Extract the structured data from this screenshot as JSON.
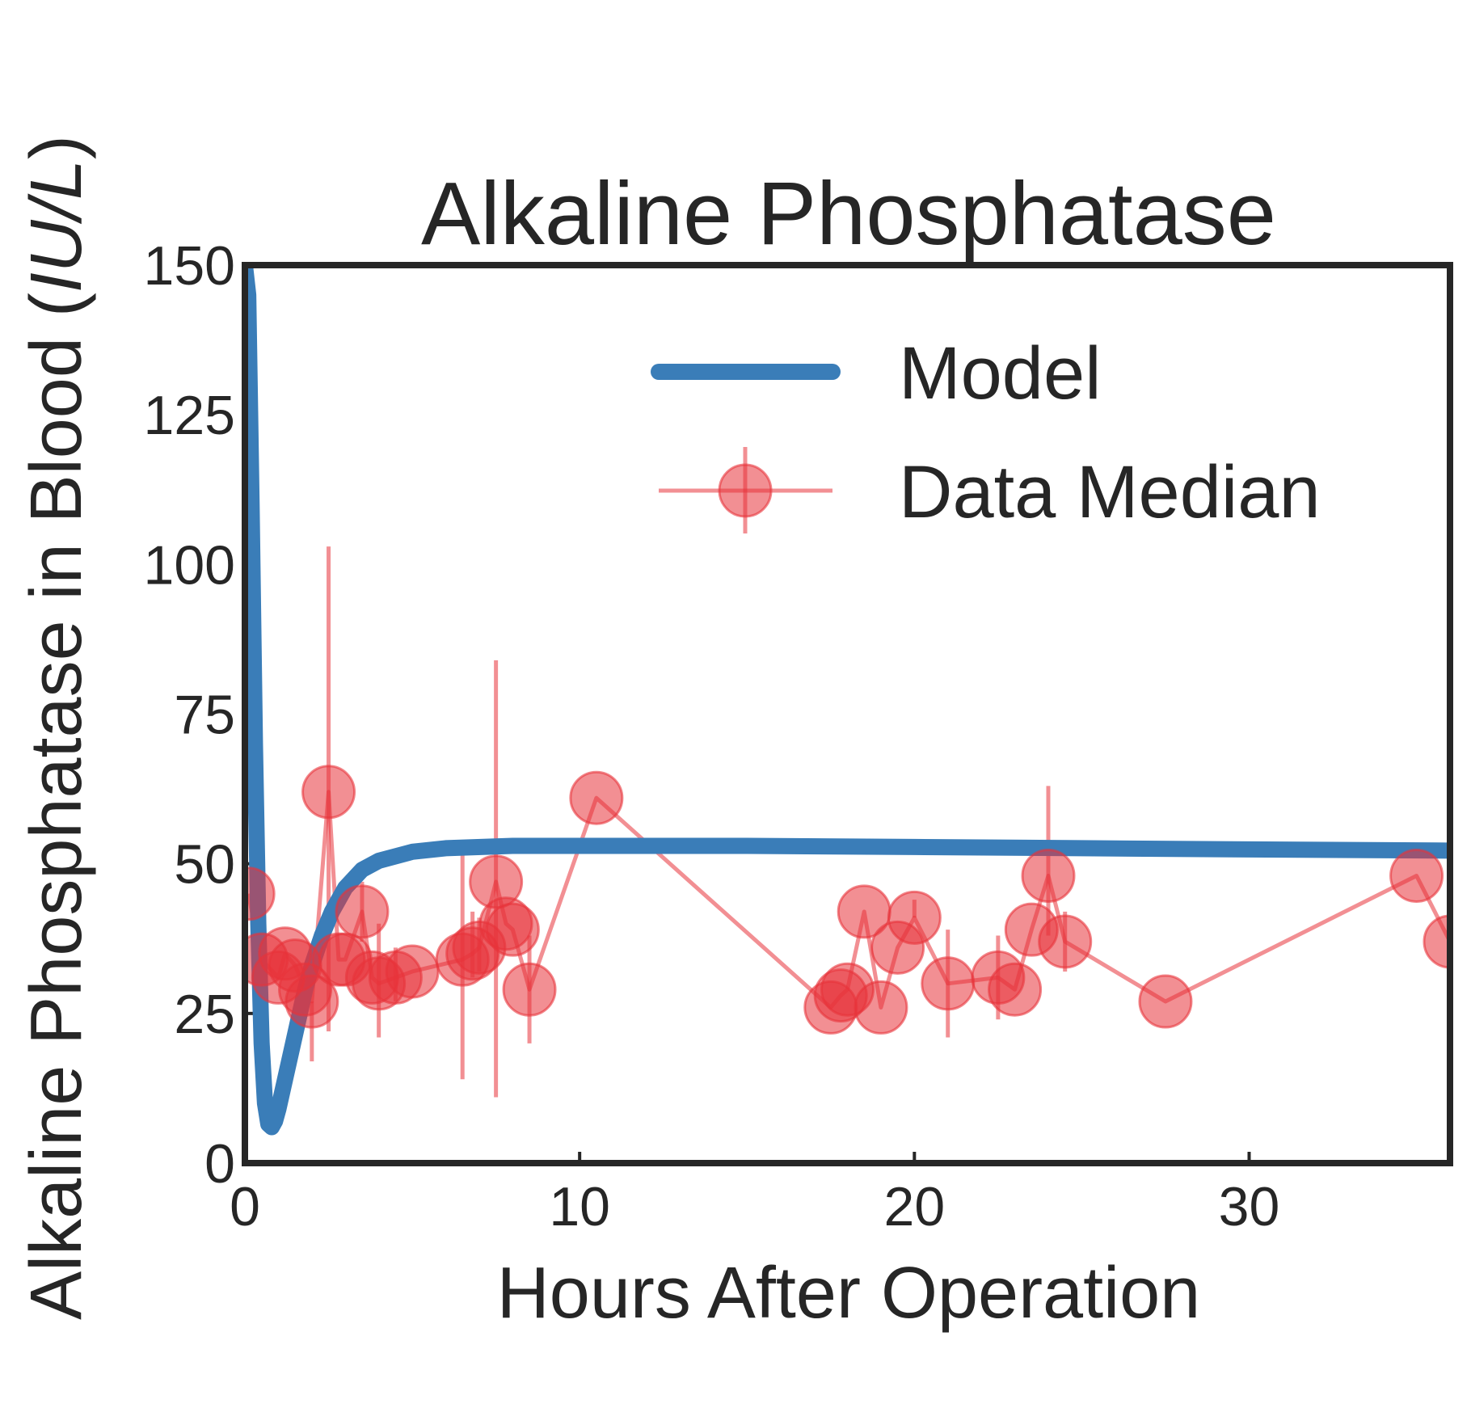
{
  "chart_data": {
    "type": "line",
    "title": "Alkaline Phosphatase",
    "xlabel": "Hours After Operation",
    "ylabel_prefix": "Alkaline Phosphatase in Blood (",
    "ylabel_unit": "IU/L",
    "ylabel_suffix": ")",
    "xlim": [
      0,
      36
    ],
    "ylim": [
      0,
      150
    ],
    "xticks": [
      0,
      10,
      20,
      30
    ],
    "xtick_labels": [
      "0",
      "10",
      "20",
      "30"
    ],
    "yticks": [
      0,
      25,
      50,
      75,
      100,
      125,
      150
    ],
    "ytick_labels": [
      "0",
      "25",
      "50",
      "75",
      "100",
      "125",
      "150"
    ],
    "grid": false,
    "legend_position": "top-right",
    "colors": {
      "model": "#3a7db8",
      "data": "#e8333a",
      "axis": "#262626"
    },
    "series": [
      {
        "name": "Model",
        "style": "line",
        "x": [
          0,
          0.1,
          0.2,
          0.3,
          0.4,
          0.5,
          0.6,
          0.7,
          0.8,
          0.9,
          1.0,
          1.2,
          1.4,
          1.6,
          1.8,
          2.0,
          2.3,
          2.6,
          3.0,
          3.5,
          4.0,
          5.0,
          6.0,
          8.0,
          10.0,
          15.0,
          20.0,
          25.0,
          30.0,
          36.0
        ],
        "y": [
          150,
          145,
          110,
          70,
          40,
          20,
          10,
          6.5,
          6,
          7,
          9,
          14,
          19,
          24,
          29,
          33,
          38,
          42,
          46,
          49,
          50.5,
          52,
          52.6,
          53,
          53,
          53,
          52.8,
          52.6,
          52.4,
          52.2
        ]
      },
      {
        "name": "Data Median",
        "style": "markers+line+errorbars",
        "x": [
          0.1,
          0.5,
          1.0,
          1.2,
          1.5,
          1.8,
          2.0,
          2.5,
          2.8,
          3.0,
          3.5,
          3.8,
          4.0,
          4.5,
          5.0,
          6.5,
          6.8,
          7.0,
          7.5,
          7.8,
          8.0,
          8.5,
          10.5,
          17.5,
          17.8,
          18.0,
          18.5,
          19.0,
          19.5,
          20.0,
          21.0,
          22.5,
          23.0,
          23.5,
          24.0,
          24.5,
          27.5,
          35.0,
          36.0
        ],
        "y": [
          45,
          34,
          31,
          35,
          33,
          29,
          27,
          62,
          34,
          34,
          42,
          31,
          30,
          31,
          32,
          34,
          35,
          36,
          47,
          40,
          39,
          29,
          61,
          26,
          28,
          29,
          42,
          26,
          36,
          41,
          30,
          31,
          29,
          39,
          48,
          37,
          27,
          48,
          37
        ],
        "err_low": [
          0,
          0,
          0,
          0,
          0,
          0,
          10,
          40,
          0,
          0,
          5,
          0,
          9,
          4,
          0,
          20,
          4,
          4,
          36,
          0,
          0,
          9,
          0,
          0,
          0,
          0,
          0,
          0,
          0,
          0,
          9,
          7,
          0,
          0,
          10,
          5,
          0,
          0,
          0
        ],
        "err_high": [
          0,
          0,
          0,
          0,
          0,
          0,
          0,
          41,
          0,
          0,
          5,
          0,
          10,
          5,
          0,
          20,
          7,
          5,
          37,
          0,
          0,
          9,
          0,
          0,
          0,
          0,
          0,
          0,
          0,
          3,
          9,
          7,
          0,
          0,
          15,
          5,
          0,
          0,
          0
        ]
      }
    ]
  }
}
